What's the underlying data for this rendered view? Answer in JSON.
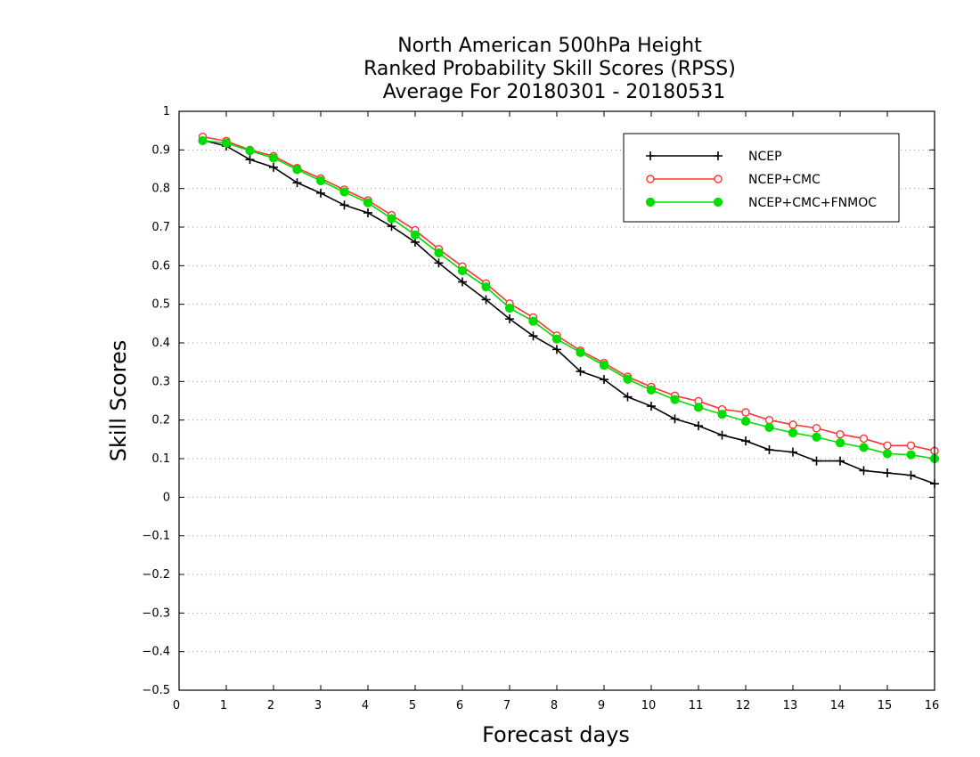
{
  "chart_data": {
    "type": "line",
    "title": [
      "North American 500hPa Height",
      "Ranked Probability Skill Scores (RPSS)",
      "Average For 20180301 - 20180531"
    ],
    "xlabel": "Forecast days",
    "ylabel": "Skill Scores",
    "xlim": [
      0,
      16
    ],
    "ylim": [
      -0.5,
      1
    ],
    "x_ticks": [
      "0",
      "1",
      "2",
      "3",
      "4",
      "5",
      "6",
      "7",
      "8",
      "9",
      "10",
      "11",
      "12",
      "13",
      "14",
      "15",
      "16"
    ],
    "y_ticks": [
      "−0.5",
      "−0.4",
      "−0.3",
      "−0.2",
      "−0.1",
      "0",
      "0.1",
      "0.2",
      "0.3",
      "0.4",
      "0.5",
      "0.6",
      "0.7",
      "0.8",
      "0.9",
      "1"
    ],
    "grid": "horizontal-dotted",
    "legend_position": "top-right",
    "x": [
      0.5,
      1,
      1.5,
      2,
      2.5,
      3,
      3.5,
      4,
      4.5,
      5,
      5.5,
      6,
      6.5,
      7,
      7.5,
      8,
      8.5,
      9,
      9.5,
      10,
      10.5,
      11,
      11.5,
      12,
      12.5,
      13,
      13.5,
      14,
      14.5,
      15,
      15.5,
      16
    ],
    "series": [
      {
        "name": "NCEP",
        "color": "#000000",
        "marker": "plus",
        "values": [
          0.925,
          0.91,
          0.875,
          0.855,
          0.815,
          0.788,
          0.757,
          0.737,
          0.702,
          0.661,
          0.607,
          0.558,
          0.512,
          0.462,
          0.418,
          0.383,
          0.326,
          0.305,
          0.26,
          0.236,
          0.203,
          0.185,
          0.161,
          0.146,
          0.123,
          0.117,
          0.094,
          0.094,
          0.069,
          0.063,
          0.057,
          0.035
        ]
      },
      {
        "name": "NCEP+CMC",
        "color": "#ff3333",
        "marker": "open-circle",
        "values": [
          0.934,
          0.923,
          0.9,
          0.884,
          0.853,
          0.826,
          0.797,
          0.769,
          0.731,
          0.692,
          0.643,
          0.598,
          0.554,
          0.502,
          0.466,
          0.419,
          0.38,
          0.348,
          0.312,
          0.286,
          0.263,
          0.249,
          0.228,
          0.22,
          0.2,
          0.188,
          0.179,
          0.163,
          0.152,
          0.134,
          0.134,
          0.12
        ]
      },
      {
        "name": "NCEP+CMC+FNMOC",
        "color": "#00dd00",
        "marker": "filled-circle",
        "values": [
          0.924,
          0.918,
          0.898,
          0.879,
          0.849,
          0.82,
          0.791,
          0.763,
          0.722,
          0.68,
          0.633,
          0.587,
          0.545,
          0.49,
          0.456,
          0.41,
          0.375,
          0.342,
          0.306,
          0.278,
          0.253,
          0.233,
          0.215,
          0.197,
          0.181,
          0.167,
          0.156,
          0.141,
          0.129,
          0.113,
          0.11,
          0.1
        ]
      }
    ]
  }
}
